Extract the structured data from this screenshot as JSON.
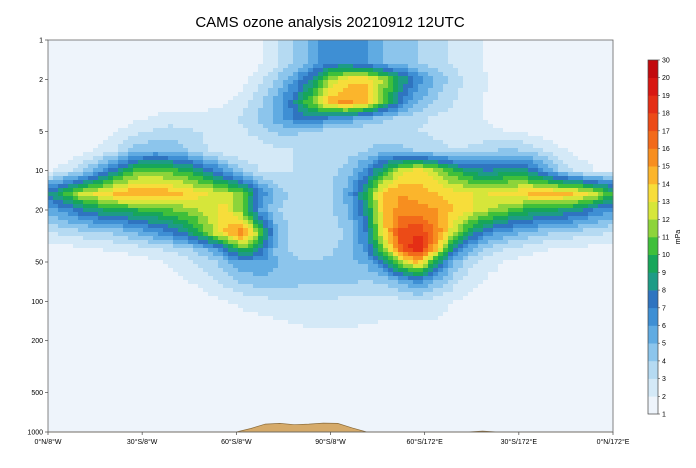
{
  "chart_data": {
    "type": "heatmap",
    "title": "CAMS ozone analysis 20210912 12UTC",
    "xlabel": "",
    "ylabel": "",
    "y_scale": "log",
    "y_inverted": true,
    "y_ticks": [
      "1",
      "2",
      "5",
      "10",
      "20",
      "50",
      "100",
      "200",
      "500",
      "1000"
    ],
    "x_ticks": [
      "0°N/8°W",
      "30°S/8°W",
      "60°S/8°W",
      "90°S/8°W",
      "60°S/172°E",
      "30°S/172°E",
      "0°N/172°E"
    ],
    "colorbar": {
      "label": "mPa",
      "levels": [
        "1",
        "2",
        "3",
        "4",
        "5",
        "6",
        "7",
        "8",
        "9",
        "10",
        "11",
        "12",
        "13",
        "14",
        "15",
        "16",
        "17",
        "18",
        "19",
        "20",
        "30"
      ],
      "colors": [
        "#eef4fb",
        "#d4e9f7",
        "#b5daf2",
        "#8cc5ec",
        "#60abe2",
        "#3e8fd4",
        "#2f74c0",
        "#1d9b86",
        "#17a65a",
        "#3fbf3a",
        "#8dd43a",
        "#d6e63a",
        "#f7dd3a",
        "#fbb52c",
        "#f78e1f",
        "#f26a1a",
        "#ec4b17",
        "#e42e15",
        "#d81712",
        "#c20a0e"
      ]
    },
    "series": [
      {
        "values": [
          0.4,
          0.4,
          0.45,
          0.5,
          0.5,
          0.55,
          0.6,
          0.6,
          0.6,
          0.65,
          0.7,
          0.9,
          1.8,
          2.8,
          4.0,
          5.5,
          6.8,
          7.0,
          6.0,
          5.0,
          4.5,
          4.0,
          3.5,
          2.8,
          2.2,
          1.8,
          1.5,
          1.2,
          0.9,
          0.7,
          0.6,
          0.5,
          0.5
        ]
      },
      {
        "values": [
          0.5,
          0.5,
          0.55,
          0.6,
          0.7,
          0.8,
          0.9,
          0.9,
          0.9,
          1.0,
          1.2,
          1.6,
          2.8,
          4.2,
          6.0,
          8.5,
          12.0,
          13.5,
          14.0,
          12.0,
          9.0,
          6.5,
          4.8,
          3.5,
          2.6,
          2.0,
          1.5,
          1.2,
          0.9,
          0.7,
          0.6,
          0.5,
          0.5
        ]
      },
      {
        "values": [
          0.7,
          0.7,
          0.8,
          0.9,
          1.0,
          1.2,
          1.4,
          1.5,
          1.5,
          1.6,
          1.9,
          2.5,
          3.8,
          5.5,
          8.0,
          11.5,
          14.5,
          15.5,
          14.0,
          10.5,
          7.0,
          5.0,
          3.8,
          3.0,
          2.3,
          1.8,
          1.4,
          1.1,
          0.9,
          0.7,
          0.6,
          0.6,
          0.6
        ]
      },
      {
        "values": [
          0.9,
          0.9,
          1.0,
          1.2,
          1.5,
          1.8,
          2.2,
          2.4,
          2.4,
          2.4,
          2.6,
          3.2,
          4.2,
          5.5,
          7.0,
          7.5,
          6.5,
          6.0,
          5.0,
          4.2,
          3.6,
          3.2,
          2.8,
          2.5,
          2.2,
          1.9,
          1.6,
          1.3,
          1.1,
          0.9,
          0.8,
          0.8,
          0.8
        ]
      },
      {
        "values": [
          1.0,
          1.0,
          1.2,
          1.5,
          2.0,
          2.7,
          3.2,
          3.5,
          3.2,
          2.8,
          2.6,
          2.8,
          3.6,
          4.2,
          4.2,
          3.8,
          3.5,
          3.2,
          3.2,
          3.2,
          3.2,
          3.0,
          2.8,
          2.6,
          2.4,
          2.2,
          2.0,
          1.8,
          1.5,
          1.3,
          1.2,
          1.1,
          1.1
        ]
      },
      {
        "values": [
          1.2,
          1.3,
          1.6,
          2.2,
          3.2,
          4.5,
          5.0,
          4.8,
          4.0,
          3.0,
          2.3,
          2.0,
          2.3,
          2.8,
          3.0,
          3.0,
          3.2,
          3.5,
          4.0,
          4.5,
          4.3,
          3.8,
          3.3,
          3.0,
          3.2,
          3.8,
          4.2,
          4.0,
          3.0,
          2.2,
          1.7,
          1.4,
          1.3
        ]
      },
      {
        "values": [
          1.8,
          2.5,
          4.0,
          6.0,
          8.5,
          10.5,
          11.0,
          10.5,
          9.5,
          8.0,
          6.0,
          4.0,
          3.0,
          2.8,
          3.0,
          3.2,
          3.6,
          4.5,
          6.5,
          9.5,
          12.5,
          13.5,
          12.0,
          10.0,
          8.5,
          8.0,
          8.5,
          8.5,
          6.5,
          4.0,
          2.6,
          2.0,
          1.8
        ]
      },
      {
        "values": [
          8.0,
          10.5,
          12.5,
          13.5,
          14.5,
          15.0,
          15.0,
          14.5,
          13.8,
          13.0,
          12.5,
          11.0,
          7.0,
          4.5,
          3.8,
          3.6,
          4.0,
          5.5,
          9.5,
          14.5,
          15.0,
          14.5,
          14.0,
          13.5,
          13.0,
          13.0,
          13.5,
          14.0,
          14.5,
          14.5,
          14.0,
          12.5,
          10.0
        ]
      },
      {
        "values": [
          5.5,
          6.5,
          8.0,
          9.0,
          9.5,
          10.0,
          10.5,
          11.0,
          11.5,
          12.5,
          13.5,
          11.0,
          6.0,
          4.0,
          3.5,
          3.4,
          3.8,
          5.0,
          8.5,
          14.0,
          15.5,
          15.5,
          15.0,
          14.0,
          13.0,
          12.0,
          11.0,
          10.0,
          9.5,
          9.0,
          8.5,
          7.0,
          6.0
        ]
      },
      {
        "values": [
          3.0,
          3.2,
          3.5,
          3.8,
          4.2,
          5.0,
          6.0,
          7.0,
          8.5,
          11.0,
          14.0,
          16.0,
          11.0,
          5.0,
          3.6,
          3.3,
          3.5,
          4.2,
          7.0,
          13.5,
          17.5,
          18.0,
          16.0,
          12.0,
          8.5,
          6.5,
          5.5,
          4.8,
          4.2,
          3.8,
          3.5,
          3.2,
          3.0
        ]
      },
      {
        "values": [
          1.5,
          1.6,
          1.8,
          2.0,
          2.2,
          2.4,
          2.8,
          3.2,
          3.8,
          5.0,
          7.0,
          10.5,
          8.0,
          4.5,
          3.6,
          3.5,
          3.8,
          4.5,
          6.5,
          11.0,
          17.0,
          19.0,
          14.0,
          8.0,
          5.0,
          3.5,
          2.8,
          2.4,
          2.1,
          1.9,
          1.7,
          1.6,
          1.5
        ]
      },
      {
        "values": [
          1.0,
          1.0,
          1.1,
          1.2,
          1.3,
          1.5,
          1.8,
          2.2,
          2.8,
          3.5,
          4.5,
          6.0,
          6.0,
          5.0,
          4.2,
          4.0,
          4.3,
          4.6,
          5.2,
          7.5,
          12.0,
          14.5,
          9.0,
          5.0,
          3.2,
          2.4,
          1.9,
          1.6,
          1.4,
          1.2,
          1.1,
          1.0,
          1.0
        ]
      },
      {
        "values": [
          0.8,
          0.8,
          0.9,
          1.0,
          1.0,
          1.1,
          1.3,
          1.6,
          2.0,
          2.6,
          3.4,
          4.2,
          4.6,
          4.6,
          4.4,
          4.2,
          4.2,
          4.2,
          4.0,
          4.2,
          5.5,
          6.5,
          5.0,
          3.4,
          2.4,
          1.8,
          1.5,
          1.3,
          1.1,
          1.0,
          0.9,
          0.8,
          0.8
        ]
      },
      {
        "values": [
          0.6,
          0.6,
          0.7,
          0.7,
          0.8,
          0.8,
          0.9,
          1.0,
          1.2,
          1.5,
          1.9,
          2.3,
          2.6,
          2.8,
          2.9,
          2.9,
          2.8,
          2.7,
          2.6,
          2.5,
          2.6,
          2.8,
          2.5,
          2.0,
          1.6,
          1.3,
          1.1,
          0.9,
          0.8,
          0.7,
          0.7,
          0.6,
          0.6
        ]
      },
      {
        "values": [
          0.5,
          0.5,
          0.55,
          0.6,
          0.65,
          0.7,
          0.75,
          0.8,
          0.9,
          1.0,
          1.2,
          1.4,
          1.6,
          1.8,
          2.0,
          2.1,
          2.1,
          2.1,
          2.0,
          1.9,
          1.9,
          1.9,
          1.8,
          1.5,
          1.2,
          1.0,
          0.9,
          0.8,
          0.7,
          0.65,
          0.6,
          0.55,
          0.5
        ]
      },
      {
        "values": [
          0.45,
          0.5,
          0.5,
          0.55,
          0.6,
          0.65,
          0.7,
          0.75,
          0.8,
          0.9,
          1.0,
          1.2,
          1.4,
          1.6,
          1.7,
          1.8,
          1.8,
          1.8,
          1.7,
          1.7,
          1.7,
          1.6,
          1.5,
          1.3,
          1.1,
          0.9,
          0.8,
          0.7,
          0.65,
          0.6,
          0.55,
          0.5,
          0.45
        ]
      },
      {
        "values": [
          0.5,
          0.5,
          0.55,
          0.6,
          0.6,
          0.65,
          0.7,
          0.7,
          0.75,
          0.8,
          0.9,
          1.1,
          1.3,
          1.4,
          1.5,
          1.6,
          1.6,
          1.6,
          1.5,
          1.5,
          1.5,
          1.4,
          1.3,
          1.2,
          1.0,
          0.9,
          0.8,
          0.7,
          0.65,
          0.6,
          0.55,
          0.5,
          0.5
        ]
      },
      {
        "values": [
          0.5,
          0.55,
          0.6,
          0.6,
          0.65,
          0.7,
          0.75,
          0.8,
          0.8,
          0.9,
          1.0,
          1.1,
          1.2,
          1.3,
          1.3,
          1.4,
          1.4,
          1.4,
          1.3,
          1.3,
          1.3,
          1.3,
          1.2,
          1.1,
          1.0,
          0.9,
          0.8,
          0.7,
          0.7,
          0.6,
          0.6,
          0.55,
          0.5
        ]
      },
      {
        "values": [
          0.6,
          0.6,
          0.65,
          0.7,
          0.7,
          0.75,
          0.8,
          0.8,
          0.85,
          0.9,
          0.95,
          1.0,
          1.05,
          1.1,
          1.1,
          1.15,
          1.15,
          1.15,
          1.1,
          1.1,
          1.1,
          1.05,
          1.0,
          0.95,
          0.9,
          0.85,
          0.8,
          0.75,
          0.7,
          0.7,
          0.65,
          0.6,
          0.6
        ]
      },
      {
        "values": [
          0.7,
          0.7,
          0.7,
          0.75,
          0.75,
          0.8,
          0.8,
          0.8,
          0.85,
          0.85,
          0.9,
          0.9,
          0.9,
          0.95,
          0.95,
          0.95,
          0.95,
          0.95,
          0.95,
          0.9,
          0.9,
          0.9,
          0.9,
          0.85,
          0.85,
          0.8,
          0.8,
          0.8,
          0.75,
          0.75,
          0.7,
          0.7,
          0.7
        ]
      }
    ],
    "pressure_rows": [
      1.5,
      2,
      3,
      4,
      5,
      7,
      10,
      15,
      20,
      30,
      40,
      50,
      70,
      100,
      150,
      200,
      300,
      500,
      700,
      1000
    ],
    "orography_hpa": [
      1000,
      1000,
      1000,
      1000,
      1000,
      1000,
      1000,
      1000,
      1000,
      1000,
      1000,
      1000,
      1000,
      1000,
      940,
      870,
      860,
      880,
      870,
      855,
      860,
      930,
      1000,
      1000,
      1000,
      1000,
      1000,
      1000,
      1000,
      1000,
      985,
      1000,
      1000,
      1000,
      1000,
      1000,
      1000,
      1000,
      1000,
      1000
    ]
  }
}
